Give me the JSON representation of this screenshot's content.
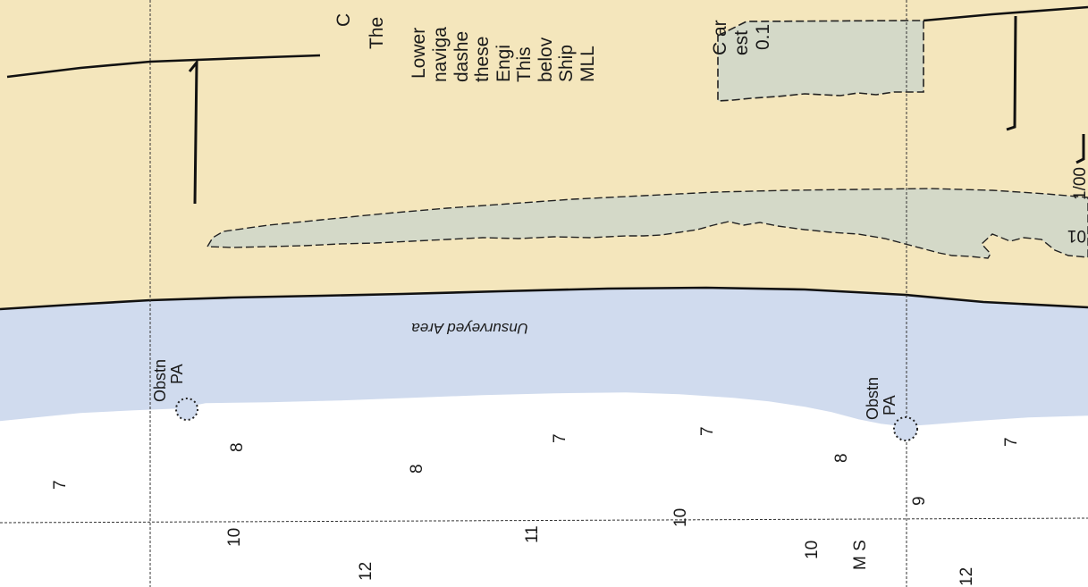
{
  "chart_note": {
    "lines": [
      "C",
      "The",
      "Lower",
      "naviga",
      "dashe",
      "these",
      "Engi",
      "This",
      "belov",
      "Ship",
      "MLL",
      "C ar",
      "est",
      "0.1"
    ]
  },
  "area_label": "Unsurveyed Area",
  "obstructions": [
    {
      "line1": "Obstn",
      "line2": "PA"
    },
    {
      "line1": "Obstn",
      "line2": "PA"
    }
  ],
  "soundings": [
    "7",
    "8",
    "8",
    "7",
    "7",
    "8",
    "7",
    "9",
    "10",
    "12",
    "11",
    "10",
    "10",
    "12"
  ],
  "bottom_quality": "M S",
  "edge_labels": [
    "1/00",
    "01"
  ],
  "colors": {
    "land": "#f4e6bc",
    "unsurveyed_water": "#d0dbee",
    "water": "#ffffff",
    "mud_flat": "#d4d9c8",
    "shoreline": "#111111",
    "grid": "#333333"
  }
}
